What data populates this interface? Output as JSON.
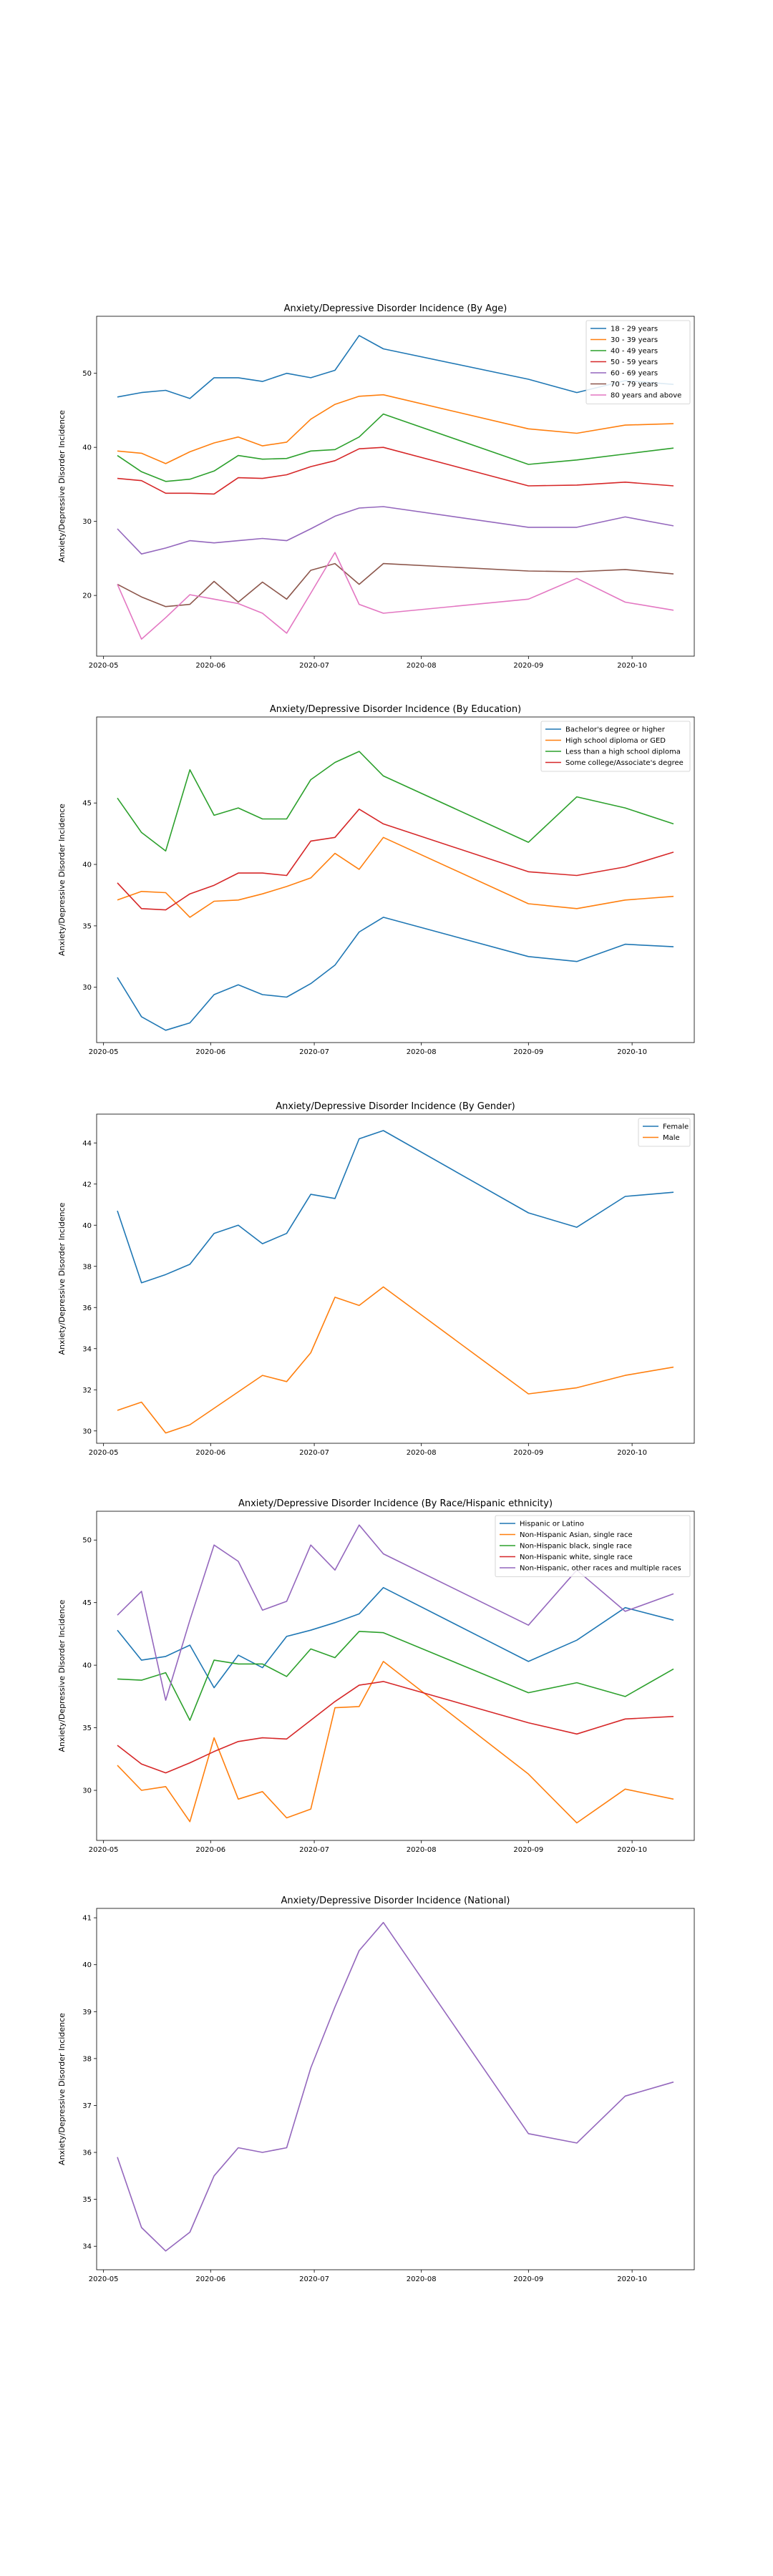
{
  "x_ticks": [
    {
      "value": "2020-05-01",
      "label": "2020-05"
    },
    {
      "value": "2020-06-01",
      "label": "2020-06"
    },
    {
      "value": "2020-07-01",
      "label": "2020-07"
    },
    {
      "value": "2020-08-01",
      "label": "2020-08"
    },
    {
      "value": "2020-09-01",
      "label": "2020-09"
    },
    {
      "value": "2020-10-01",
      "label": "2020-10"
    }
  ],
  "x_dates": [
    "2020-05-05",
    "2020-05-12",
    "2020-05-19",
    "2020-05-26",
    "2020-06-02",
    "2020-06-09",
    "2020-06-16",
    "2020-06-23",
    "2020-06-30",
    "2020-07-07",
    "2020-07-14",
    "2020-07-21",
    "2020-09-01",
    "2020-09-15",
    "2020-09-29",
    "2020-10-13"
  ],
  "chart_data": [
    {
      "type": "line",
      "title": "Anxiety/Depressive Disorder Incidence (By Age)",
      "xlabel": "",
      "ylabel": "Anxiety/Depressive Disorder Incidence",
      "ylim": [
        11.8,
        57.7
      ],
      "yticks": [
        20,
        30,
        40,
        50
      ],
      "xlim": [
        "2020-04-29",
        "2020-10-19"
      ],
      "legend": "top-right",
      "series": [
        {
          "name": "18 - 29 years",
          "color": "#1f77b4",
          "values": [
            46.8,
            47.4,
            47.7,
            46.6,
            49.4,
            49.4,
            48.9,
            50.0,
            49.4,
            50.4,
            55.1,
            53.3,
            49.2,
            47.4,
            49.0,
            48.5
          ]
        },
        {
          "name": "30 - 39 years",
          "color": "#ff7f0e",
          "values": [
            39.5,
            39.2,
            37.8,
            39.4,
            40.6,
            41.4,
            40.2,
            40.7,
            43.8,
            45.8,
            46.9,
            47.1,
            42.5,
            41.9,
            43.0,
            43.2
          ]
        },
        {
          "name": "40 - 49 years",
          "color": "#2ca02c",
          "values": [
            38.9,
            36.7,
            35.4,
            35.7,
            36.8,
            38.9,
            38.4,
            38.5,
            39.5,
            39.7,
            41.4,
            44.5,
            37.7,
            38.3,
            39.1,
            39.9
          ]
        },
        {
          "name": "50 - 59 years",
          "color": "#d62728",
          "values": [
            35.8,
            35.5,
            33.8,
            33.8,
            33.7,
            35.9,
            35.8,
            36.3,
            37.4,
            38.2,
            39.8,
            40.0,
            34.8,
            34.9,
            35.3,
            34.8
          ]
        },
        {
          "name": "60 - 69 years",
          "color": "#9467bd",
          "values": [
            29.0,
            25.6,
            26.4,
            27.4,
            27.1,
            27.4,
            27.7,
            27.4,
            29.0,
            30.7,
            31.8,
            32.0,
            29.2,
            29.2,
            30.6,
            29.4
          ]
        },
        {
          "name": "70 - 79 years",
          "color": "#8c564b",
          "values": [
            21.5,
            19.8,
            18.5,
            18.8,
            21.9,
            19.1,
            21.8,
            19.5,
            23.4,
            24.3,
            21.5,
            24.3,
            23.3,
            23.2,
            23.5,
            22.9
          ]
        },
        {
          "name": "80 years and above",
          "color": "#e377c2",
          "values": [
            21.5,
            14.1,
            17.0,
            20.1,
            19.5,
            18.9,
            17.6,
            14.9,
            20.3,
            25.8,
            18.8,
            17.6,
            19.5,
            22.3,
            19.1,
            18.0
          ]
        }
      ]
    },
    {
      "type": "line",
      "title": "Anxiety/Depressive Disorder Incidence (By Education)",
      "xlabel": "",
      "ylabel": "Anxiety/Depressive Disorder Incidence",
      "ylim": [
        25.5,
        52.0
      ],
      "yticks": [
        30,
        35,
        40,
        45
      ],
      "xlim": [
        "2020-04-29",
        "2020-10-19"
      ],
      "legend": "top-right",
      "series": [
        {
          "name": "Bachelor's degree or higher",
          "color": "#1f77b4",
          "values": [
            30.8,
            27.6,
            26.5,
            27.1,
            29.4,
            30.2,
            29.4,
            29.2,
            30.3,
            31.8,
            34.5,
            35.7,
            32.5,
            32.1,
            33.5,
            33.3
          ]
        },
        {
          "name": "High school diploma or GED",
          "color": "#ff7f0e",
          "values": [
            37.1,
            37.8,
            37.7,
            35.7,
            37.0,
            37.1,
            37.6,
            38.2,
            38.9,
            40.9,
            39.6,
            42.2,
            36.8,
            36.4,
            37.1,
            37.4
          ]
        },
        {
          "name": "Less than a high school diploma",
          "color": "#2ca02c",
          "values": [
            45.4,
            42.6,
            41.1,
            47.7,
            44.0,
            44.6,
            43.7,
            43.7,
            46.9,
            48.3,
            49.2,
            47.2,
            41.8,
            45.5,
            44.6,
            43.3
          ]
        },
        {
          "name": "Some college/Associate's degree",
          "color": "#d62728",
          "values": [
            38.5,
            36.4,
            36.3,
            37.6,
            38.3,
            39.3,
            39.3,
            39.1,
            41.9,
            42.2,
            44.5,
            43.3,
            39.4,
            39.1,
            39.8,
            41.0
          ]
        }
      ]
    },
    {
      "type": "line",
      "title": "Anxiety/Depressive Disorder Incidence (By Gender)",
      "xlabel": "",
      "ylabel": "Anxiety/Depressive Disorder Incidence",
      "ylim": [
        29.4,
        45.4
      ],
      "yticks": [
        30,
        32,
        34,
        36,
        38,
        40,
        42,
        44
      ],
      "xlim": [
        "2020-04-29",
        "2020-10-19"
      ],
      "legend": "top-right",
      "series": [
        {
          "name": "Female",
          "color": "#1f77b4",
          "values": [
            40.7,
            37.2,
            37.6,
            38.1,
            39.6,
            40.0,
            39.1,
            39.6,
            41.5,
            41.3,
            44.2,
            44.6,
            40.6,
            39.9,
            41.4,
            41.6
          ]
        },
        {
          "name": "Male",
          "color": "#ff7f0e",
          "values": [
            31.0,
            31.4,
            29.9,
            30.3,
            31.1,
            31.9,
            32.7,
            32.4,
            33.8,
            36.5,
            36.1,
            37.0,
            31.8,
            32.1,
            32.7,
            33.1
          ]
        }
      ]
    },
    {
      "type": "line",
      "title": "Anxiety/Depressive Disorder Incidence (By Race/Hispanic ethnicity)",
      "xlabel": "",
      "ylabel": "Anxiety/Depressive Disorder Incidence",
      "ylim": [
        26.0,
        52.3
      ],
      "yticks": [
        30,
        35,
        40,
        45,
        50
      ],
      "xlim": [
        "2020-04-29",
        "2020-10-19"
      ],
      "legend": "top-right",
      "series": [
        {
          "name": "Hispanic or Latino",
          "color": "#1f77b4",
          "values": [
            42.8,
            40.4,
            40.7,
            41.6,
            38.2,
            40.8,
            39.8,
            42.3,
            42.8,
            43.4,
            44.1,
            46.2,
            40.3,
            42.0,
            44.6,
            43.6
          ]
        },
        {
          "name": "Non-Hispanic Asian, single race",
          "color": "#ff7f0e",
          "values": [
            32.0,
            30.0,
            30.3,
            27.5,
            34.2,
            29.3,
            29.9,
            27.8,
            28.5,
            36.6,
            36.7,
            40.3,
            31.3,
            27.4,
            30.1,
            29.3
          ]
        },
        {
          "name": "Non-Hispanic black, single race",
          "color": "#2ca02c",
          "values": [
            38.9,
            38.8,
            39.4,
            35.6,
            40.4,
            40.1,
            40.1,
            39.1,
            41.3,
            40.6,
            42.7,
            42.6,
            37.8,
            38.6,
            37.5,
            39.7
          ]
        },
        {
          "name": "Non-Hispanic white, single race",
          "color": "#d62728",
          "values": [
            33.6,
            32.1,
            31.4,
            32.2,
            33.1,
            33.9,
            34.2,
            34.1,
            35.6,
            37.1,
            38.4,
            38.7,
            35.4,
            34.5,
            35.7,
            35.9
          ]
        },
        {
          "name": "Non-Hispanic, other races and multiple races",
          "color": "#9467bd",
          "values": [
            44.0,
            45.9,
            37.2,
            43.6,
            49.6,
            48.3,
            44.4,
            45.1,
            49.6,
            47.6,
            51.2,
            48.9,
            43.2,
            47.6,
            44.3,
            45.7
          ]
        }
      ]
    },
    {
      "type": "line",
      "title": "Anxiety/Depressive Disorder Incidence (National)",
      "xlabel": "",
      "ylabel": "Anxiety/Depressive Disorder Incidence",
      "ylim": [
        33.5,
        41.2
      ],
      "yticks": [
        34,
        35,
        36,
        37,
        38,
        39,
        40,
        41
      ],
      "xlim": [
        "2020-04-29",
        "2020-10-19"
      ],
      "legend": "none",
      "series": [
        {
          "color": "#9467bd",
          "values": [
            35.9,
            34.4,
            33.9,
            34.3,
            35.5,
            36.1,
            36.0,
            36.1,
            37.8,
            39.1,
            40.3,
            40.9,
            36.4,
            36.2,
            37.2,
            37.5
          ]
        }
      ]
    }
  ]
}
